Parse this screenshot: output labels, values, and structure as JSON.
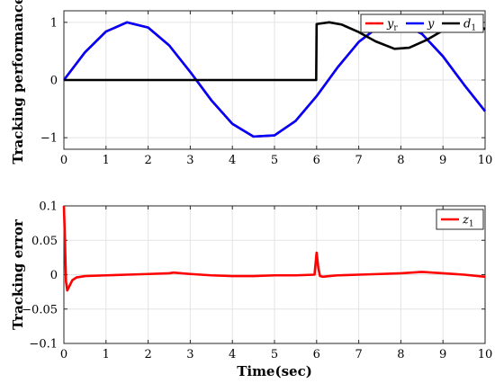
{
  "chart_data": [
    {
      "type": "line",
      "ylabel": "Tracking performance",
      "xlabel": "",
      "xlim": [
        0,
        10
      ],
      "ylim": [
        -1.2,
        1.2
      ],
      "xticks": [
        0,
        1,
        2,
        3,
        4,
        5,
        6,
        7,
        8,
        9,
        10
      ],
      "yticks": [
        -1,
        0,
        1
      ],
      "ytick_labels": [
        "−1",
        "0",
        "1"
      ],
      "grid": true,
      "legend": "top-right",
      "series": [
        {
          "name": "y_r",
          "legend_main": "y",
          "legend_sub": "r",
          "color": "#ff0000",
          "x": [
            0,
            0.5,
            1,
            1.5,
            2,
            2.5,
            3,
            3.5,
            4,
            4.5,
            5,
            5.5,
            6,
            6.5,
            7,
            7.5,
            8,
            8.5,
            9,
            9.5,
            10
          ],
          "y": [
            0,
            0.48,
            0.84,
            1.0,
            0.91,
            0.6,
            0.14,
            -0.35,
            -0.76,
            -0.98,
            -0.96,
            -0.71,
            -0.28,
            0.22,
            0.66,
            0.94,
            0.99,
            0.8,
            0.41,
            -0.08,
            -0.54
          ]
        },
        {
          "name": "y",
          "legend_main": "y",
          "legend_sub": "",
          "color": "#0000ff",
          "x": [
            0,
            0.5,
            1,
            1.5,
            2,
            2.5,
            3,
            3.5,
            4,
            4.5,
            5,
            5.5,
            6,
            6.5,
            7,
            7.5,
            8,
            8.5,
            9,
            9.5,
            10
          ],
          "y": [
            0,
            0.48,
            0.84,
            1.0,
            0.91,
            0.6,
            0.14,
            -0.35,
            -0.76,
            -0.98,
            -0.96,
            -0.71,
            -0.28,
            0.22,
            0.66,
            0.94,
            0.99,
            0.8,
            0.41,
            -0.08,
            -0.54
          ]
        },
        {
          "name": "d_1",
          "legend_main": "d",
          "legend_sub": "1",
          "color": "#000000",
          "x": [
            0,
            5.99,
            6.0,
            6.3,
            6.6,
            7.0,
            7.4,
            7.85,
            8.2,
            8.6,
            9.0,
            9.4,
            9.8,
            10
          ],
          "y": [
            0,
            0,
            0.97,
            1.0,
            0.96,
            0.83,
            0.67,
            0.54,
            0.56,
            0.69,
            0.86,
            0.98,
            0.97,
            0.88
          ]
        }
      ]
    },
    {
      "type": "line",
      "ylabel": "Tracking error",
      "xlabel": "Time(sec)",
      "xlim": [
        0,
        10
      ],
      "ylim": [
        -0.1,
        0.1
      ],
      "xticks": [
        0,
        1,
        2,
        3,
        4,
        5,
        6,
        7,
        8,
        9,
        10
      ],
      "yticks": [
        -0.1,
        -0.05,
        0,
        0.05,
        0.1
      ],
      "ytick_labels": [
        "−0.1",
        "−0.05",
        "0",
        "0.05",
        "0.1"
      ],
      "grid": true,
      "legend": "top-right",
      "series": [
        {
          "name": "z_1",
          "legend_main": "z",
          "legend_sub": "1",
          "color": "#ff0000",
          "x": [
            0,
            0.02,
            0.05,
            0.08,
            0.12,
            0.2,
            0.3,
            0.5,
            1,
            1.5,
            2,
            2.5,
            2.6,
            3,
            3.5,
            4,
            4.5,
            5,
            5.5,
            5.95,
            6.0,
            6.04,
            6.08,
            6.15,
            6.3,
            6.5,
            7,
            7.5,
            8,
            8.5,
            9,
            9.5,
            10
          ],
          "y": [
            0.1,
            0.06,
            -0.01,
            -0.023,
            -0.018,
            -0.008,
            -0.004,
            -0.002,
            -0.001,
            0.0,
            0.001,
            0.002,
            0.003,
            0.001,
            -0.001,
            -0.002,
            -0.002,
            -0.001,
            -0.001,
            0.0,
            0.032,
            0.01,
            -0.002,
            -0.003,
            -0.002,
            -0.001,
            0.0,
            0.001,
            0.002,
            0.004,
            0.002,
            0.0,
            -0.003
          ]
        }
      ]
    }
  ]
}
